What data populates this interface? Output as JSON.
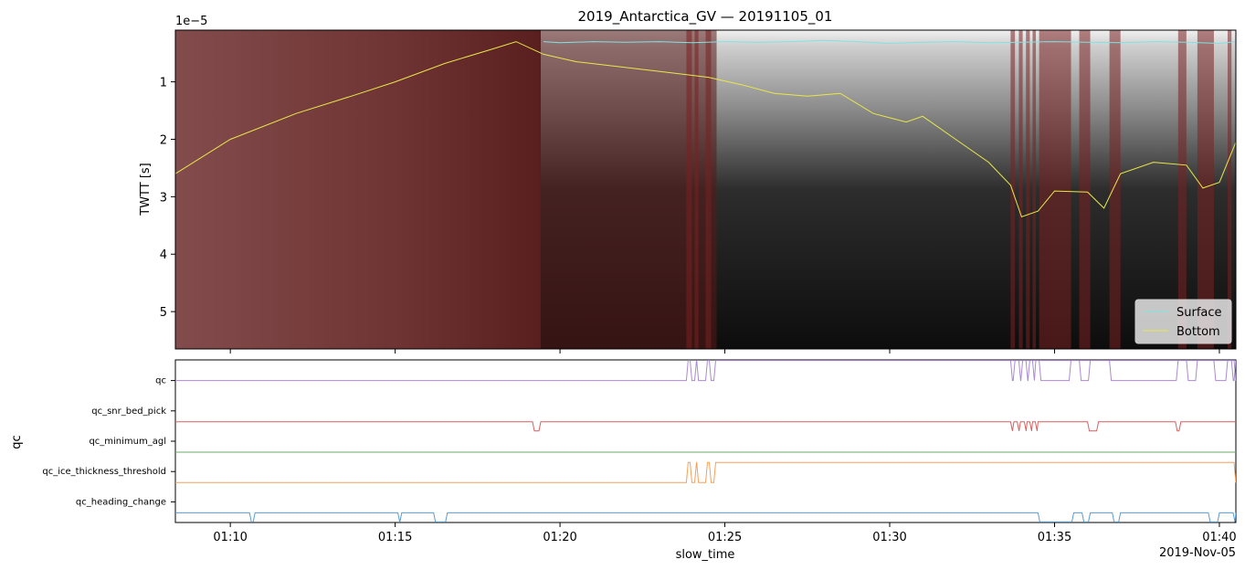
{
  "chart_data": [
    {
      "type": "radargram",
      "title": "2019_Antarctica_GV — 20191105_01",
      "ylabel": "TWTT [s]",
      "y_scale_label": "1e−5",
      "y_unit_multiplier": 1e-05,
      "ylim": [
        5.65,
        0.1
      ],
      "y_ticks": [
        1,
        2,
        3,
        4,
        5
      ],
      "y_tick_labels": [
        "1",
        "2",
        "3",
        "4",
        "5"
      ],
      "xlim": [
        "01:08:20",
        "01:40:30"
      ],
      "legend": {
        "placement": "bottom-right",
        "entries": [
          {
            "label": "Surface",
            "color": "#7fe3e3"
          },
          {
            "label": "Bottom",
            "color": "#e8e84a"
          }
        ]
      },
      "series": [
        {
          "name": "Surface",
          "color": "#7fe3e3",
          "x": [
            "01:19:30",
            "01:20:00",
            "01:21:00",
            "01:22:00",
            "01:23:00",
            "01:24:00",
            "01:25:00",
            "01:26:00",
            "01:27:00",
            "01:28:00",
            "01:29:00",
            "01:30:00",
            "01:31:00",
            "01:32:00",
            "01:33:00",
            "01:34:00",
            "01:35:00",
            "01:36:00",
            "01:37:00",
            "01:38:00",
            "01:39:00",
            "01:40:00",
            "01:40:30"
          ],
          "y": [
            0.3,
            0.32,
            0.3,
            0.31,
            0.3,
            0.32,
            0.3,
            0.31,
            0.3,
            0.28,
            0.3,
            0.33,
            0.31,
            0.3,
            0.32,
            0.31,
            0.3,
            0.31,
            0.32,
            0.3,
            0.31,
            0.33,
            0.3
          ]
        },
        {
          "name": "Bottom",
          "color": "#e8e84a",
          "x": [
            "01:08:20",
            "01:10:00",
            "01:12:00",
            "01:13:40",
            "01:15:00",
            "01:16:30",
            "01:18:00",
            "01:18:40",
            "01:19:30",
            "01:20:30",
            "01:22:00",
            "01:23:30",
            "01:24:30",
            "01:25:30",
            "01:26:30",
            "01:27:30",
            "01:28:30",
            "01:29:30",
            "01:30:30",
            "01:31:00",
            "01:32:00",
            "01:33:00",
            "01:33:40",
            "01:34:00",
            "01:34:30",
            "01:35:00",
            "01:36:00",
            "01:36:30",
            "01:37:00",
            "01:38:00",
            "01:39:00",
            "01:39:30",
            "01:40:00",
            "01:40:30"
          ],
          "y": [
            2.6,
            2.0,
            1.55,
            1.25,
            1.0,
            0.68,
            0.42,
            0.3,
            0.52,
            0.65,
            0.75,
            0.85,
            0.92,
            1.05,
            1.2,
            1.25,
            1.2,
            1.55,
            1.7,
            1.6,
            2.0,
            2.4,
            2.8,
            3.35,
            3.25,
            2.9,
            2.92,
            3.2,
            2.6,
            2.4,
            2.45,
            2.85,
            2.75,
            2.05
          ]
        }
      ]
    },
    {
      "type": "line",
      "ylabel": "qc",
      "xlabel": "slow_time",
      "x_ticks": [
        "01:10",
        "01:15",
        "01:20",
        "01:25",
        "01:30",
        "01:35",
        "01:40"
      ],
      "x_offset_label": "2019-Nov-05",
      "xlim": [
        "01:08:20",
        "01:40:30"
      ],
      "categories": [
        "qc",
        "qc_snr_bed_pick",
        "qc_minimum_agl",
        "qc_ice_thickness_threshold",
        "qc_heading_change"
      ],
      "series": [
        {
          "name": "qc",
          "color": "#a98bd0",
          "flag_intervals": [
            [
              "01:23:50",
              "01:24:00"
            ],
            [
              "01:24:05",
              "01:24:12"
            ],
            [
              "01:24:25",
              "01:24:35"
            ],
            [
              "01:24:40",
              "01:40:30"
            ]
          ],
          "drop_intervals": [
            [
              "01:33:40",
              "01:33:48"
            ],
            [
              "01:33:55",
              "01:34:02"
            ],
            [
              "01:34:08",
              "01:34:15"
            ],
            [
              "01:34:20",
              "01:34:26"
            ],
            [
              "01:34:32",
              "01:35:30"
            ],
            [
              "01:35:45",
              "01:36:05"
            ],
            [
              "01:36:40",
              "01:38:45"
            ],
            [
              "01:39:00",
              "01:39:20"
            ],
            [
              "01:39:50",
              "01:40:15"
            ],
            [
              "01:40:22",
              "01:40:30"
            ]
          ]
        },
        {
          "name": "qc_snr_bed_pick",
          "color": "#d65f5f",
          "flag_intervals": [
            [
              "01:19:10",
              "01:19:25"
            ],
            [
              "01:33:40",
              "01:33:46"
            ],
            [
              "01:33:52",
              "01:33:58"
            ],
            [
              "01:34:05",
              "01:34:10"
            ],
            [
              "01:34:15",
              "01:34:20"
            ],
            [
              "01:34:25",
              "01:34:30"
            ],
            [
              "01:36:00",
              "01:36:20"
            ],
            [
              "01:38:40",
              "01:38:50"
            ]
          ]
        },
        {
          "name": "qc_minimum_agl",
          "color": "#6aaa6a",
          "flag_intervals": []
        },
        {
          "name": "qc_ice_thickness_threshold",
          "color": "#f5a05a",
          "flag_intervals": [
            [
              "01:23:50",
              "01:24:00"
            ],
            [
              "01:24:05",
              "01:24:12"
            ],
            [
              "01:24:25",
              "01:24:35"
            ],
            [
              "01:24:40",
              "01:40:30"
            ]
          ]
        },
        {
          "name": "qc_heading_change",
          "color": "#5b9bd0",
          "drop_intervals": [
            [
              "01:10:35",
              "01:10:45"
            ],
            [
              "01:15:05",
              "01:15:12"
            ],
            [
              "01:16:10",
              "01:16:35"
            ],
            [
              "01:34:30",
              "01:35:35"
            ],
            [
              "01:35:50",
              "01:36:05"
            ],
            [
              "01:36:45",
              "01:37:00"
            ],
            [
              "01:39:40",
              "01:40:00"
            ],
            [
              "01:40:25",
              "01:40:30"
            ]
          ]
        }
      ]
    }
  ],
  "colors": {
    "flagged_overlay": "#5a1a1a",
    "radar_dark": "#111111",
    "radar_light": "#cfcfcf"
  }
}
